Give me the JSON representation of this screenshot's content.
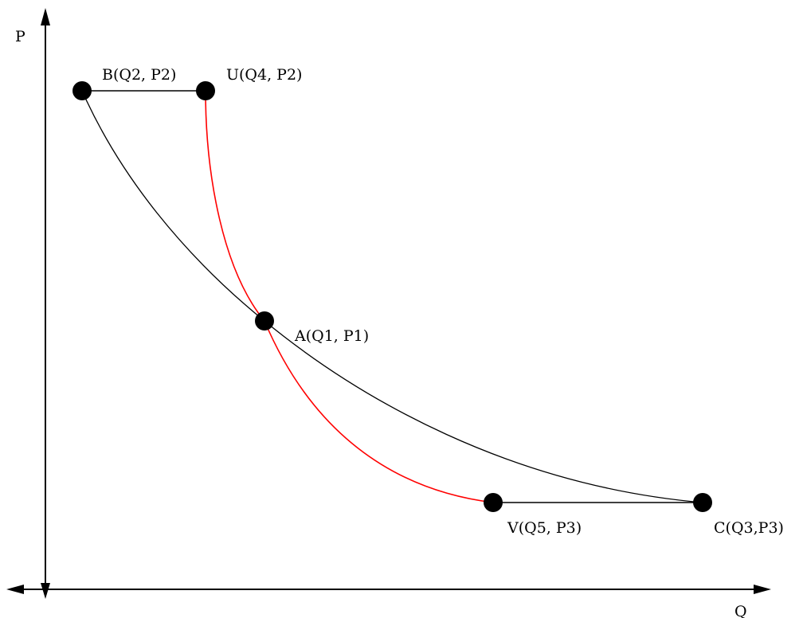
{
  "axes": {
    "y_label": "P",
    "x_label": "Q"
  },
  "points": {
    "A": {
      "label": "A(Q1, P1)"
    },
    "B": {
      "label": "B(Q2, P2)"
    },
    "U": {
      "label": "U(Q4, P2)"
    },
    "V": {
      "label": "V(Q5, P3)"
    },
    "C": {
      "label": "C(Q3,P3)"
    }
  },
  "colors": {
    "black_curve": "#000000",
    "red_curve": "#ff0000",
    "background": "#ffffff"
  }
}
